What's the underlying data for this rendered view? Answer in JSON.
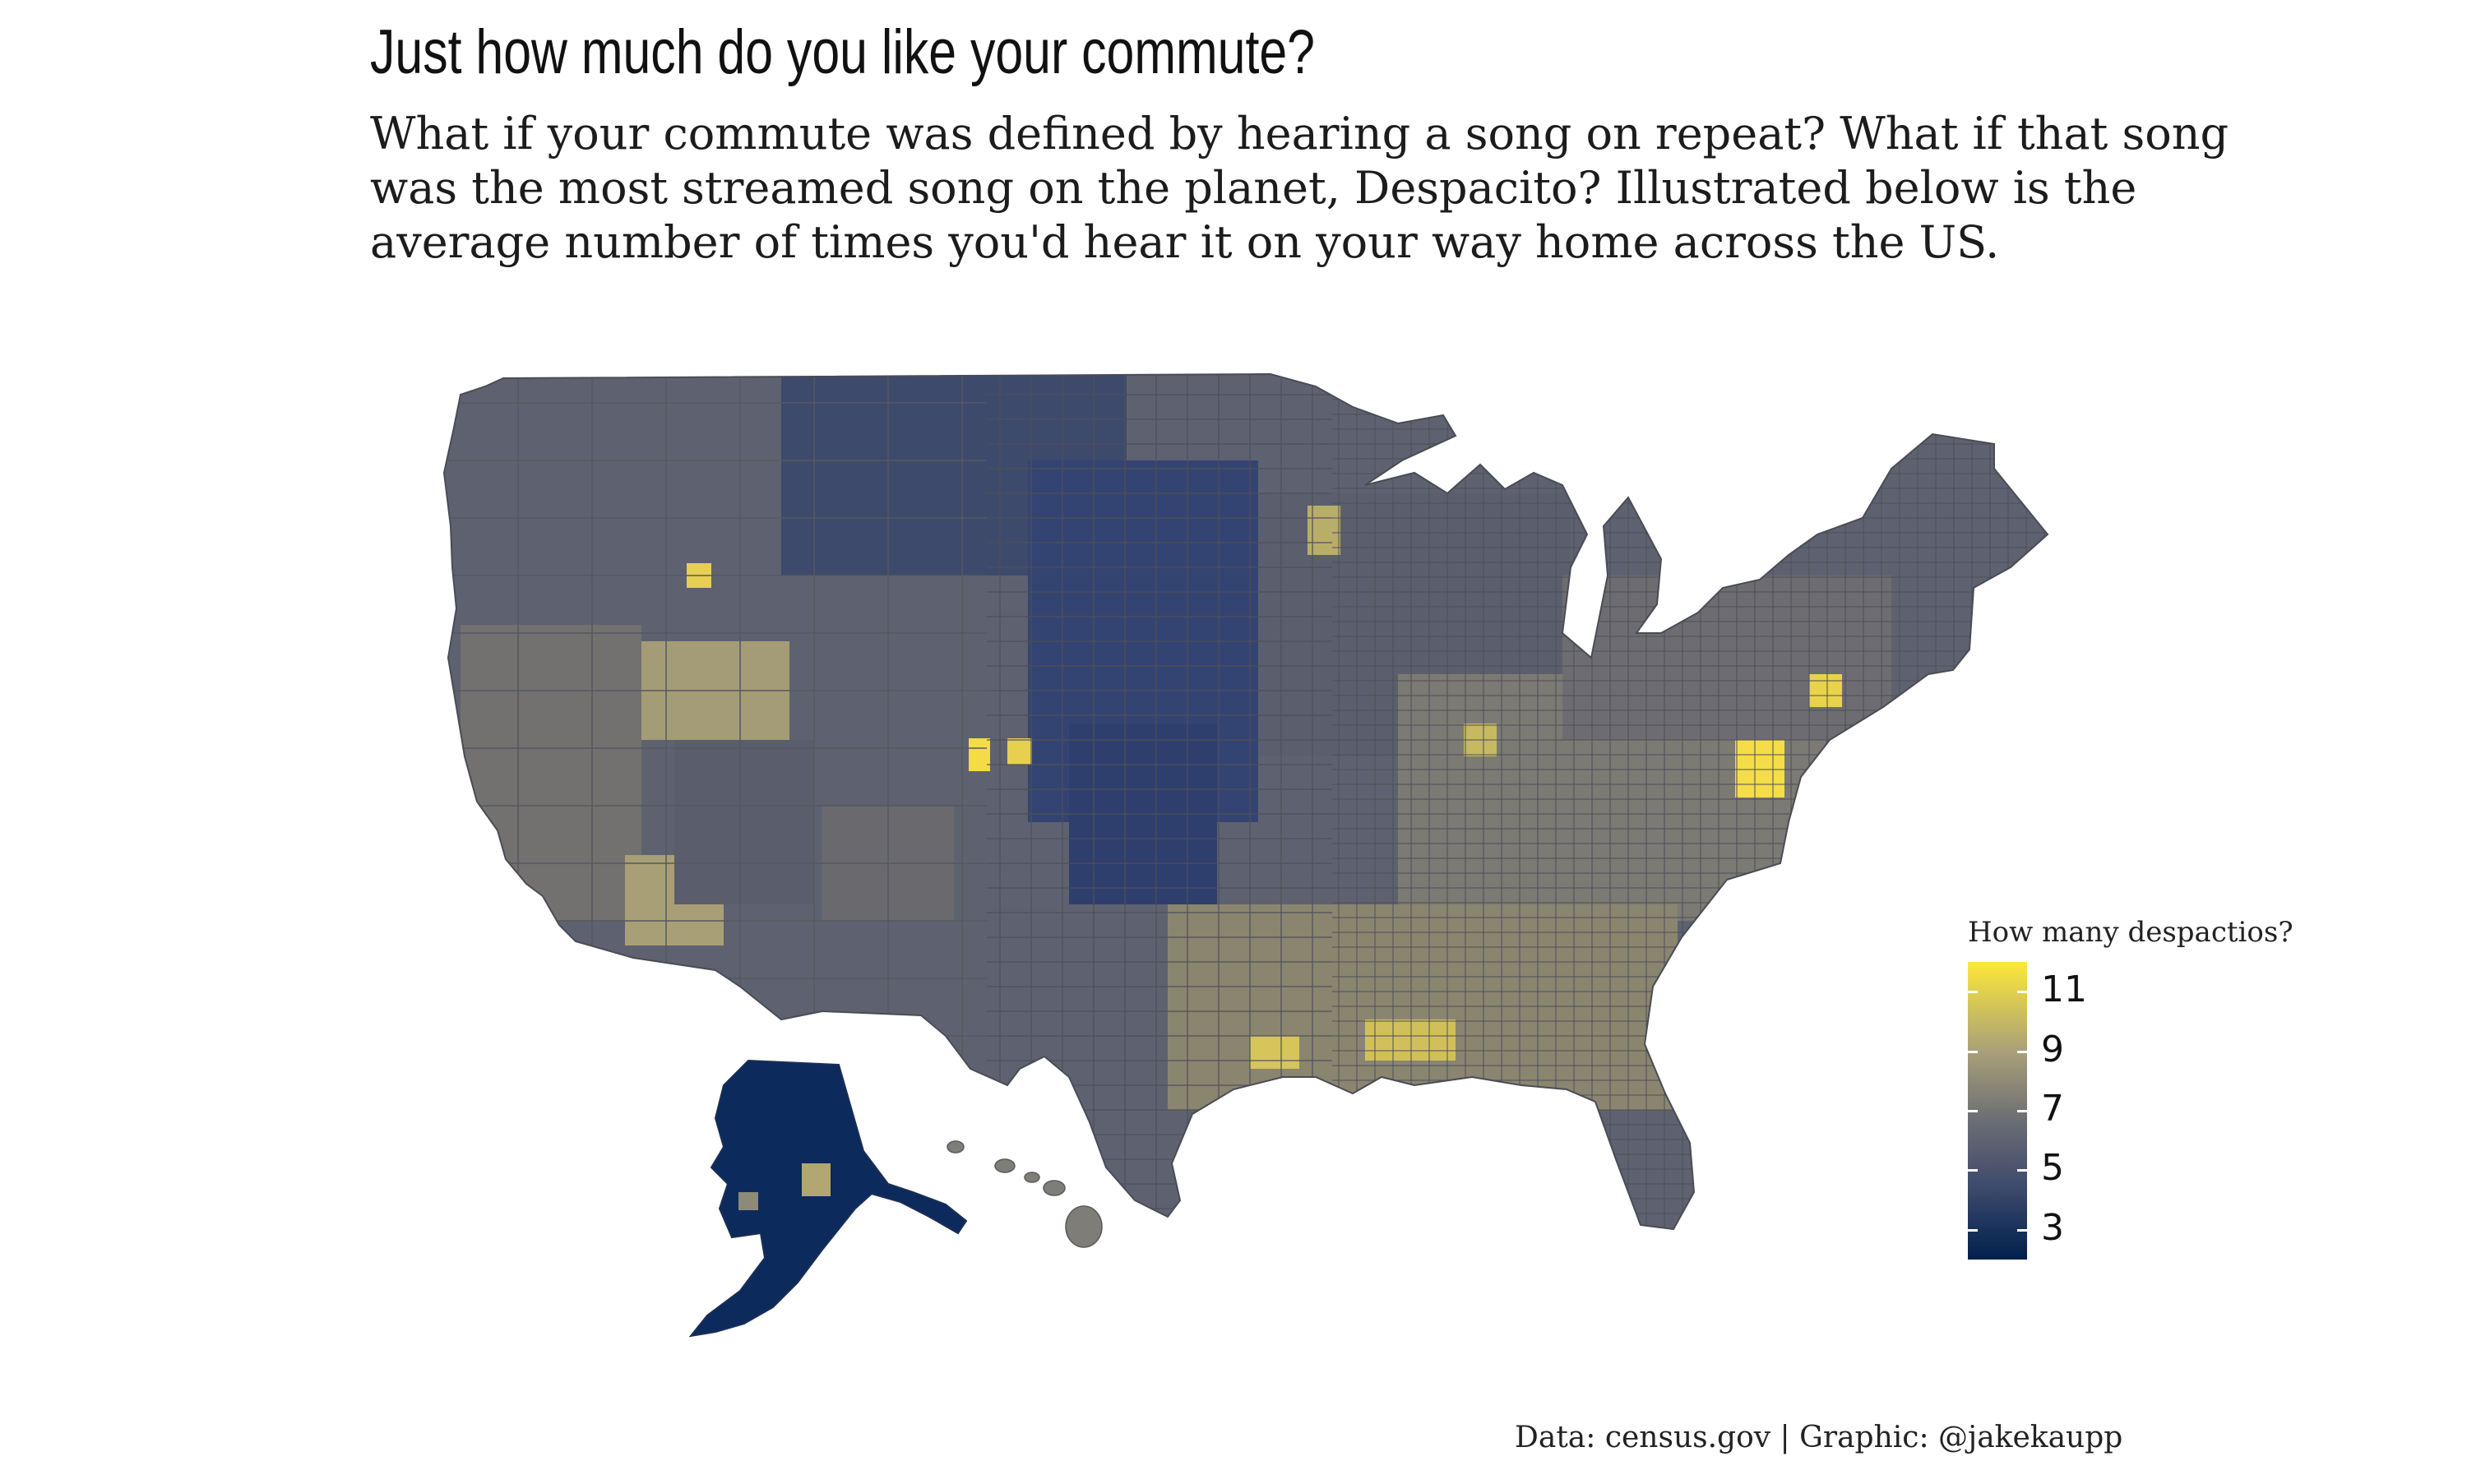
{
  "title": "Just how much do you like your commute?",
  "subtitle": "What if your commute was defined by hearing a song on repeat? What if that song was the most streamed song on the planet, Despacito? Illustrated below is the average number of times you'd hear it on your way home across the US.",
  "legend": {
    "title": "How many despactios?",
    "ticks": [
      "11",
      "9",
      "7",
      "5",
      "3"
    ],
    "range": [
      2,
      12
    ],
    "colors": [
      "#00204d",
      "#3f4b6d",
      "#6f7074",
      "#a9a079",
      "#fde838"
    ]
  },
  "caption": "Data: census.gov | Graphic: @jakekaupp",
  "map": {
    "type": "choropleth",
    "regions": [
      "Contiguous US counties",
      "Alaska",
      "Hawaii"
    ],
    "background": "#ffffff",
    "border_color": "#5a5a5a"
  }
}
